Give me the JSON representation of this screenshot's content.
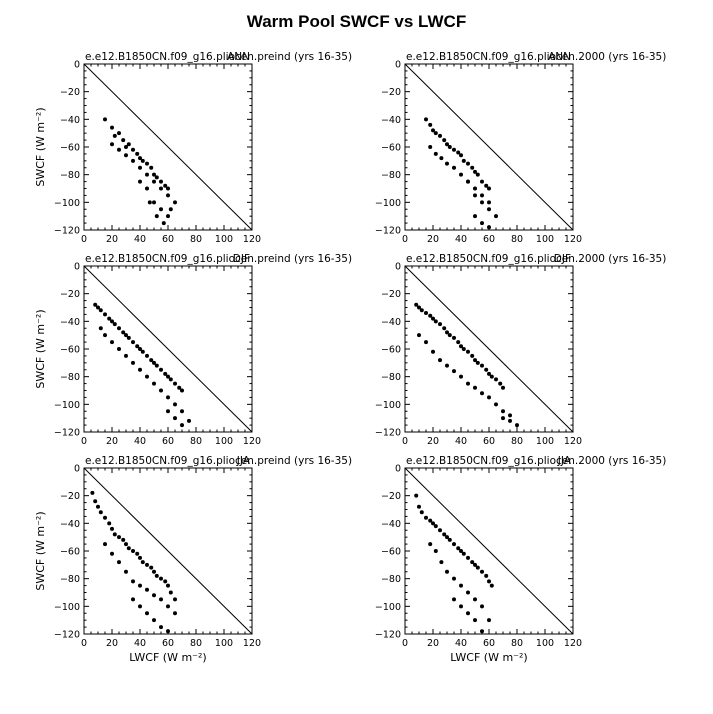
{
  "title": "Warm Pool SWCF vs LWCF",
  "xlabel": "LWCF (W m⁻²)",
  "ylabel": "SWCF (W m⁻²)",
  "chart_data": [
    {
      "type": "scatter",
      "subtitle": "e.e12.B1850CN.f09_g16.pliocen.preind (yrs 16-35)",
      "corner_label": "ANN",
      "xlim": [
        0,
        120
      ],
      "ylim": [
        -120,
        0
      ],
      "diagonal": [
        [
          0,
          0
        ],
        [
          120,
          -120
        ]
      ],
      "x": [
        15,
        20,
        22,
        25,
        28,
        30,
        32,
        35,
        38,
        40,
        42,
        45,
        48,
        50,
        52,
        55,
        58,
        60,
        20,
        25,
        30,
        35,
        40,
        45,
        50,
        55,
        60,
        40,
        45,
        50,
        55,
        60,
        65,
        47,
        52,
        57,
        62
      ],
      "y": [
        -40,
        -46,
        -52,
        -50,
        -55,
        -60,
        -58,
        -62,
        -65,
        -68,
        -70,
        -72,
        -75,
        -80,
        -82,
        -85,
        -88,
        -90,
        -58,
        -62,
        -66,
        -70,
        -75,
        -80,
        -85,
        -90,
        -95,
        -85,
        -90,
        -100,
        -105,
        -110,
        -100,
        -100,
        -110,
        -115,
        -105
      ]
    },
    {
      "type": "scatter",
      "subtitle": "e.e12.B1850CN.f09_g16.pliocen.2000 (yrs 16-35)",
      "corner_label": "ANN",
      "xlim": [
        0,
        120
      ],
      "ylim": [
        -120,
        0
      ],
      "diagonal": [
        [
          0,
          0
        ],
        [
          120,
          -120
        ]
      ],
      "x": [
        15,
        18,
        20,
        22,
        25,
        28,
        30,
        32,
        35,
        38,
        40,
        42,
        45,
        48,
        50,
        52,
        55,
        58,
        60,
        18,
        22,
        26,
        30,
        35,
        40,
        45,
        50,
        55,
        60,
        45,
        50,
        55,
        60,
        65,
        50,
        55,
        60
      ],
      "y": [
        -40,
        -44,
        -48,
        -50,
        -52,
        -55,
        -58,
        -60,
        -62,
        -64,
        -66,
        -70,
        -72,
        -75,
        -78,
        -80,
        -85,
        -88,
        -90,
        -60,
        -65,
        -68,
        -72,
        -75,
        -80,
        -85,
        -90,
        -95,
        -100,
        -85,
        -95,
        -100,
        -105,
        -110,
        -110,
        -115,
        -118
      ]
    },
    {
      "type": "scatter",
      "subtitle": "e.e12.B1850CN.f09_g16.pliocen.preind (yrs 16-35)",
      "corner_label": "DJF",
      "xlim": [
        0,
        120
      ],
      "ylim": [
        -120,
        0
      ],
      "diagonal": [
        [
          0,
          0
        ],
        [
          120,
          -120
        ]
      ],
      "x": [
        8,
        10,
        12,
        15,
        18,
        20,
        22,
        25,
        28,
        30,
        32,
        35,
        38,
        40,
        42,
        45,
        48,
        50,
        52,
        55,
        58,
        60,
        62,
        65,
        68,
        70,
        12,
        15,
        20,
        25,
        30,
        35,
        40,
        45,
        50,
        55,
        60,
        65,
        70,
        60,
        65,
        70,
        75
      ],
      "y": [
        -28,
        -30,
        -32,
        -35,
        -38,
        -40,
        -42,
        -45,
        -48,
        -50,
        -52,
        -55,
        -58,
        -60,
        -62,
        -65,
        -68,
        -70,
        -72,
        -75,
        -78,
        -80,
        -82,
        -85,
        -88,
        -90,
        -45,
        -50,
        -55,
        -60,
        -65,
        -70,
        -75,
        -80,
        -85,
        -90,
        -95,
        -100,
        -105,
        -105,
        -110,
        -115,
        -112
      ]
    },
    {
      "type": "scatter",
      "subtitle": "e.e12.B1850CN.f09_g16.pliocen.2000 (yrs 16-35)",
      "corner_label": "DJF",
      "xlim": [
        0,
        120
      ],
      "ylim": [
        -120,
        0
      ],
      "diagonal": [
        [
          0,
          0
        ],
        [
          120,
          -120
        ]
      ],
      "x": [
        8,
        10,
        12,
        15,
        18,
        20,
        22,
        25,
        28,
        30,
        32,
        35,
        38,
        40,
        42,
        45,
        48,
        50,
        52,
        55,
        58,
        60,
        62,
        65,
        68,
        70,
        10,
        15,
        20,
        25,
        30,
        35,
        40,
        45,
        50,
        55,
        60,
        65,
        70,
        75,
        70,
        75,
        80
      ],
      "y": [
        -28,
        -30,
        -32,
        -34,
        -36,
        -38,
        -40,
        -42,
        -45,
        -48,
        -50,
        -52,
        -55,
        -58,
        -60,
        -62,
        -65,
        -68,
        -70,
        -72,
        -75,
        -78,
        -80,
        -82,
        -85,
        -88,
        -50,
        -55,
        -62,
        -68,
        -72,
        -76,
        -80,
        -85,
        -88,
        -92,
        -95,
        -100,
        -105,
        -108,
        -110,
        -112,
        -115
      ]
    },
    {
      "type": "scatter",
      "subtitle": "e.e12.B1850CN.f09_g16.pliocen.preind (yrs 16-35)",
      "corner_label": "JJA",
      "xlim": [
        0,
        120
      ],
      "ylim": [
        -120,
        0
      ],
      "diagonal": [
        [
          0,
          0
        ],
        [
          120,
          -120
        ]
      ],
      "x": [
        6,
        8,
        10,
        12,
        15,
        18,
        20,
        22,
        25,
        28,
        30,
        32,
        35,
        38,
        40,
        42,
        45,
        48,
        50,
        52,
        55,
        58,
        60,
        62,
        65,
        15,
        20,
        25,
        30,
        35,
        40,
        45,
        50,
        55,
        60,
        65,
        35,
        40,
        45,
        50,
        55,
        60
      ],
      "y": [
        -18,
        -24,
        -28,
        -32,
        -36,
        -40,
        -44,
        -48,
        -50,
        -52,
        -55,
        -58,
        -60,
        -62,
        -65,
        -68,
        -70,
        -72,
        -75,
        -78,
        -80,
        -82,
        -85,
        -90,
        -95,
        -55,
        -62,
        -68,
        -75,
        -82,
        -85,
        -88,
        -92,
        -95,
        -100,
        -105,
        -95,
        -100,
        -105,
        -110,
        -115,
        -118
      ]
    },
    {
      "type": "scatter",
      "subtitle": "e.e12.B1850CN.f09_g16.pliocen.2000 (yrs 16-35)",
      "corner_label": "JJA",
      "xlim": [
        0,
        120
      ],
      "ylim": [
        -120,
        0
      ],
      "diagonal": [
        [
          0,
          0
        ],
        [
          120,
          -120
        ]
      ],
      "x": [
        8,
        10,
        12,
        15,
        18,
        20,
        22,
        25,
        28,
        30,
        32,
        35,
        38,
        40,
        42,
        45,
        48,
        50,
        52,
        55,
        58,
        60,
        62,
        18,
        22,
        26,
        30,
        35,
        40,
        45,
        50,
        55,
        60,
        35,
        40,
        45,
        50,
        55
      ],
      "y": [
        -20,
        -28,
        -32,
        -36,
        -38,
        -40,
        -42,
        -45,
        -48,
        -50,
        -52,
        -55,
        -58,
        -60,
        -62,
        -65,
        -68,
        -70,
        -72,
        -75,
        -78,
        -82,
        -85,
        -55,
        -60,
        -68,
        -75,
        -80,
        -85,
        -90,
        -95,
        -100,
        -110,
        -95,
        -100,
        -105,
        -110,
        -118
      ]
    }
  ]
}
